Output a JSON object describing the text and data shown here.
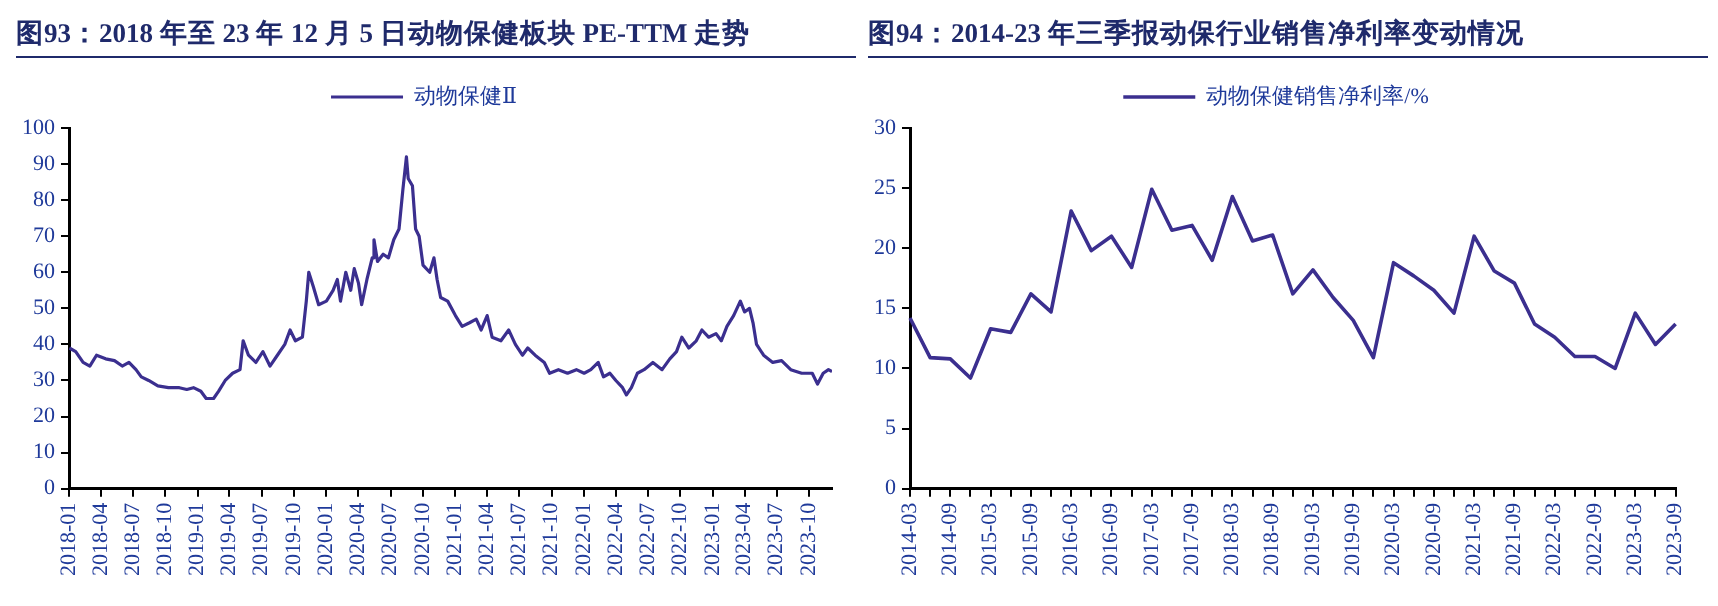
{
  "chart_data": [
    {
      "type": "line",
      "title": "图93：2018 年至 23 年 12 月 5 日动物保健板块 PE-TTM 走势",
      "legend": "top",
      "grid": false,
      "xlim": [
        "2018-01",
        "2023-12-05"
      ],
      "xticks": [
        "2018-01",
        "2018-04",
        "2018-07",
        "2018-10",
        "2019-01",
        "2019-04",
        "2019-07",
        "2019-10",
        "2020-01",
        "2020-04",
        "2020-07",
        "2020-10",
        "2021-01",
        "2021-04",
        "2021-07",
        "2021-10",
        "2022-01",
        "2022-04",
        "2022-07",
        "2022-10",
        "2023-01",
        "2023-04",
        "2023-07",
        "2023-10"
      ],
      "ylim": [
        0,
        100
      ],
      "yticks": [
        0,
        10,
        20,
        30,
        40,
        50,
        60,
        70,
        80,
        90,
        100
      ],
      "series": [
        {
          "name": "动物保健Ⅱ",
          "color": "#3b2f8f",
          "x": [
            "2018-01-02",
            "2018-01-20",
            "2018-02-10",
            "2018-03-01",
            "2018-03-20",
            "2018-04-15",
            "2018-05-10",
            "2018-06-01",
            "2018-06-20",
            "2018-07-10",
            "2018-07-25",
            "2018-08-15",
            "2018-09-10",
            "2018-10-10",
            "2018-11-10",
            "2018-12-01",
            "2018-12-20",
            "2019-01-10",
            "2019-01-25",
            "2019-02-15",
            "2019-03-01",
            "2019-03-20",
            "2019-04-10",
            "2019-05-01",
            "2019-05-10",
            "2019-05-25",
            "2019-06-15",
            "2019-07-05",
            "2019-07-25",
            "2019-08-15",
            "2019-09-05",
            "2019-09-20",
            "2019-10-05",
            "2019-10-25",
            "2019-11-05",
            "2019-11-12",
            "2019-11-25",
            "2019-12-10",
            "2020-01-01",
            "2020-01-20",
            "2020-02-01",
            "2020-02-10",
            "2020-02-25",
            "2020-03-10",
            "2020-03-20",
            "2020-04-01",
            "2020-04-10",
            "2020-04-25",
            "2020-05-10",
            "2020-05-15",
            "2020-05-25",
            "2020-06-10",
            "2020-06-25",
            "2020-07-10",
            "2020-07-25",
            "2020-08-05",
            "2020-08-15",
            "2020-08-20",
            "2020-09-01",
            "2020-09-10",
            "2020-09-20",
            "2020-10-01",
            "2020-10-20",
            "2020-11-01",
            "2020-11-10",
            "2020-11-20",
            "2020-12-10",
            "2021-01-01",
            "2021-01-20",
            "2021-02-10",
            "2021-03-01",
            "2021-03-15",
            "2021-04-01",
            "2021-04-15",
            "2021-05-10",
            "2021-06-01",
            "2021-06-20",
            "2021-07-10",
            "2021-07-25",
            "2021-08-15",
            "2021-09-10",
            "2021-09-25",
            "2021-10-20",
            "2021-11-15",
            "2021-12-10",
            "2022-01-01",
            "2022-01-20",
            "2022-02-10",
            "2022-02-25",
            "2022-03-15",
            "2022-04-01",
            "2022-04-20",
            "2022-05-01",
            "2022-05-15",
            "2022-06-01",
            "2022-06-20",
            "2022-07-15",
            "2022-08-10",
            "2022-09-01",
            "2022-09-20",
            "2022-10-05",
            "2022-10-25",
            "2022-11-15",
            "2022-12-01",
            "2022-12-20",
            "2023-01-10",
            "2023-01-25",
            "2023-02-10",
            "2023-03-01",
            "2023-03-20",
            "2023-04-01",
            "2023-04-15",
            "2023-04-25",
            "2023-05-05",
            "2023-05-25",
            "2023-06-20",
            "2023-07-15",
            "2023-08-10",
            "2023-09-10",
            "2023-10-10",
            "2023-10-25",
            "2023-11-10",
            "2023-11-25",
            "2023-12-05"
          ],
          "values": [
            39,
            38,
            35,
            34,
            37,
            36,
            35.5,
            34,
            35,
            33,
            31,
            30,
            28.5,
            28,
            28,
            27.5,
            28,
            27,
            25,
            25,
            27,
            30,
            32,
            33,
            41,
            37,
            35,
            38,
            34,
            37,
            40,
            44,
            41,
            42,
            52,
            60,
            56,
            51,
            52,
            55,
            58,
            52,
            60,
            55,
            61,
            57,
            51,
            58,
            64,
            69,
            63,
            65,
            64,
            69,
            72,
            83,
            92,
            86,
            84,
            72,
            70,
            62,
            60,
            64,
            58,
            53,
            52,
            48,
            45,
            46,
            47,
            44,
            48,
            42,
            41,
            44,
            40,
            37,
            39,
            37,
            35,
            32,
            33,
            32,
            33,
            32,
            33,
            35,
            31,
            32,
            30,
            28,
            26,
            28,
            32,
            33,
            35,
            33,
            36,
            38,
            42,
            39,
            41,
            44,
            42,
            43,
            41,
            45,
            48,
            52,
            49,
            50,
            46,
            40,
            37,
            35,
            35.5,
            33,
            32,
            32,
            29,
            32,
            33,
            32.5
          ]
        }
      ]
    },
    {
      "type": "line",
      "title": "图94：2014-23 年三季报动保行业销售净利率变动情况",
      "legend": "top",
      "grid": false,
      "categories": [
        "2014-03",
        null,
        "2014-09",
        null,
        "2015-03",
        null,
        "2015-09",
        null,
        "2016-03",
        null,
        "2016-09",
        null,
        "2017-03",
        null,
        "2017-09",
        null,
        "2018-03",
        null,
        "2018-09",
        null,
        "2019-03",
        null,
        "2019-09",
        null,
        "2020-03",
        null,
        "2020-09",
        null,
        "2021-03",
        null,
        "2021-09",
        null,
        "2022-03",
        null,
        "2022-09",
        null,
        "2023-03",
        null,
        "2023-09"
      ],
      "ylim": [
        0,
        30
      ],
      "yticks": [
        0,
        5,
        10,
        15,
        20,
        25,
        30
      ],
      "series": [
        {
          "name": "动物保健销售净利率/%",
          "color": "#3b2f8f",
          "values": [
            14.2,
            10.9,
            10.8,
            9.2,
            13.3,
            13.0,
            16.2,
            14.7,
            23.1,
            19.8,
            21.0,
            18.4,
            24.9,
            21.5,
            21.9,
            19.0,
            24.3,
            20.6,
            21.1,
            16.2,
            18.2,
            15.9,
            14.0,
            10.9,
            18.8,
            17.7,
            16.5,
            14.6,
            21.0,
            18.1,
            17.1,
            13.7,
            12.6,
            11.0,
            11.0,
            10.0,
            14.6,
            12.0,
            13.7
          ]
        }
      ]
    }
  ]
}
